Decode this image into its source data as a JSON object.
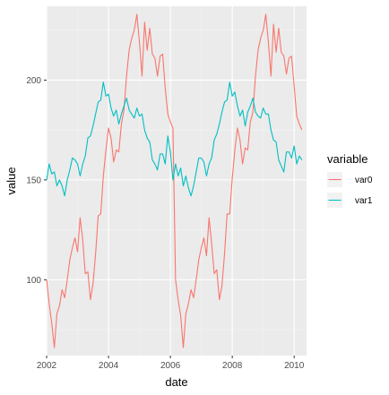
{
  "chart_data": {
    "type": "line",
    "xlabel": "date",
    "ylabel": "value",
    "xlim": [
      2002,
      2010.4
    ],
    "ylim": [
      62,
      237
    ],
    "x_ticks": [
      2002,
      2004,
      2006,
      2008,
      2010
    ],
    "x_tick_labels": [
      "2002",
      "2004",
      "2006",
      "2008",
      "2010"
    ],
    "y_ticks": [
      100,
      150,
      200
    ],
    "y_tick_labels": [
      "100",
      "150",
      "200"
    ],
    "grid": true,
    "legend": {
      "title": "variable",
      "position": "right"
    },
    "x": [
      2002.0,
      2002.083,
      2002.167,
      2002.25,
      2002.333,
      2002.417,
      2002.5,
      2002.583,
      2002.667,
      2002.75,
      2002.833,
      2002.917,
      2003.0,
      2003.083,
      2003.167,
      2003.25,
      2003.333,
      2003.417,
      2003.5,
      2003.583,
      2003.667,
      2003.75,
      2003.833,
      2003.917,
      2004.0,
      2004.083,
      2004.167,
      2004.25,
      2004.333,
      2004.417,
      2004.5,
      2004.583,
      2004.667,
      2004.75,
      2004.833,
      2004.917,
      2005.0,
      2005.083,
      2005.167,
      2005.25,
      2005.333,
      2005.417,
      2005.5,
      2005.583,
      2005.667,
      2005.75,
      2005.833,
      2005.917,
      2006.0,
      2006.083,
      2006.167,
      2006.25,
      2006.333,
      2006.417,
      2006.5,
      2006.583,
      2006.667,
      2006.75,
      2006.833,
      2006.917,
      2007.0,
      2007.083,
      2007.167,
      2007.25,
      2007.333,
      2007.417,
      2007.5,
      2007.583,
      2007.667,
      2007.75,
      2007.833,
      2007.917,
      2008.0,
      2008.083,
      2008.167,
      2008.25,
      2008.333,
      2008.417,
      2008.5,
      2008.583,
      2008.667,
      2008.75,
      2008.833,
      2008.917,
      2009.0,
      2009.083,
      2009.167,
      2009.25,
      2009.333,
      2009.417,
      2009.5,
      2009.583,
      2009.667,
      2009.75,
      2009.833,
      2009.917,
      2010.0,
      2010.083,
      2010.167,
      2010.25
    ],
    "series": [
      {
        "name": "var0",
        "color": "#F8766D",
        "values": [
          100,
          88,
          78,
          66,
          83,
          87,
          95,
          91,
          100,
          110,
          116,
          121,
          114,
          131,
          120,
          103,
          104,
          90,
          98,
          113,
          132,
          133,
          152,
          165,
          176,
          171,
          159,
          165,
          164,
          178,
          185,
          202,
          215,
          221,
          225,
          233,
          219,
          202,
          229,
          215,
          226,
          213,
          211,
          202,
          212,
          213,
          196,
          183,
          179,
          176,
          100,
          90,
          82,
          66,
          83,
          88,
          95,
          91,
          100,
          110,
          116,
          121,
          112,
          131,
          118,
          103,
          105,
          90,
          97,
          113,
          133,
          133,
          151,
          165,
          176,
          170,
          158,
          166,
          165,
          179,
          184,
          202,
          215,
          221,
          225,
          233,
          219,
          202,
          228,
          214,
          226,
          214,
          212,
          203,
          211,
          212,
          197,
          182,
          178,
          175
        ]
      },
      {
        "name": "var1",
        "color": "#00BFC4",
        "values": [
          150,
          158,
          153,
          154,
          147,
          150,
          147,
          142,
          150,
          155,
          161,
          160,
          158,
          152,
          158,
          162,
          171,
          172,
          177,
          183,
          189,
          190,
          199,
          192,
          193,
          186,
          182,
          185,
          178,
          183,
          187,
          191,
          185,
          183,
          181,
          186,
          182,
          183,
          175,
          171,
          169,
          160,
          158,
          155,
          163,
          163,
          158,
          172,
          164,
          150,
          158,
          152,
          156,
          147,
          152,
          146,
          142,
          147,
          154,
          161,
          161,
          159,
          152,
          158,
          161,
          170,
          173,
          178,
          184,
          189,
          190,
          199,
          192,
          194,
          187,
          182,
          185,
          177,
          184,
          187,
          191,
          184,
          182,
          181,
          186,
          183,
          183,
          175,
          170,
          169,
          160,
          157,
          154,
          164,
          164,
          161,
          167,
          158,
          162,
          160
        ]
      }
    ]
  }
}
